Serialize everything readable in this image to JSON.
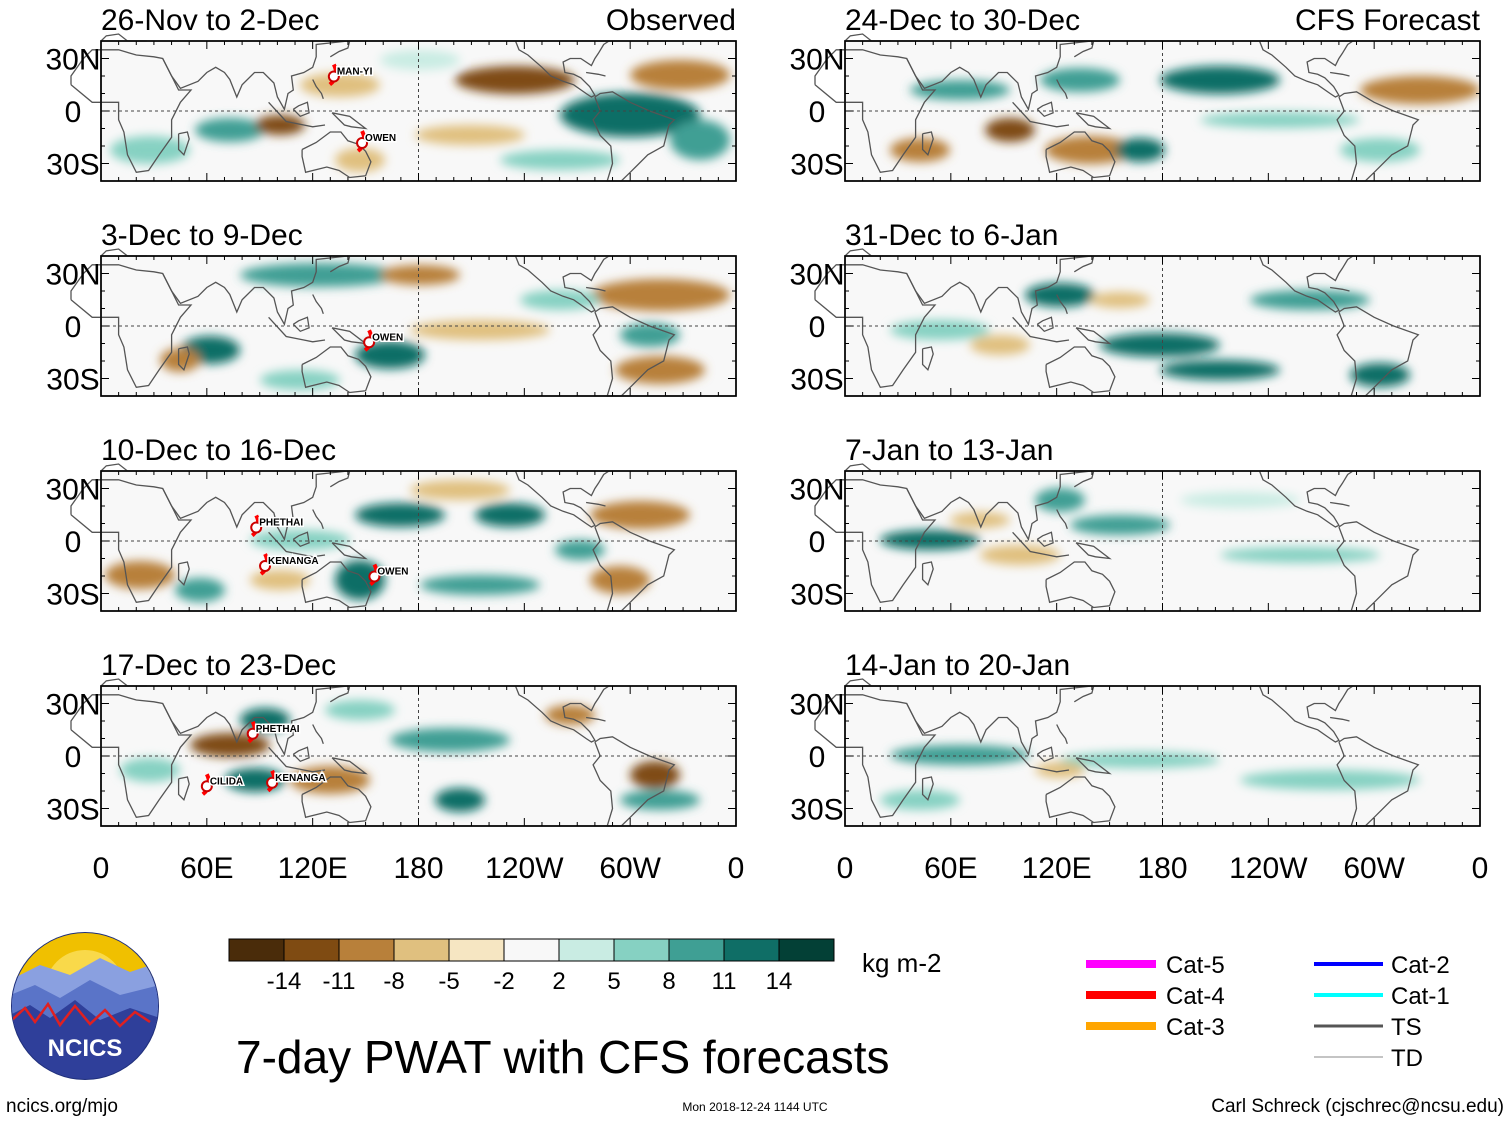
{
  "observed_label": "Observed",
  "forecast_label": "CFS Forecast",
  "observed_panels": [
    {
      "period": "26-Nov to 2-Dec",
      "storms": [
        "MAN-YI",
        "OWEN"
      ]
    },
    {
      "period": "3-Dec to 9-Dec",
      "storms": [
        "OWEN"
      ]
    },
    {
      "period": "10-Dec to 16-Dec",
      "storms": [
        "PHETHAI",
        "KENANGA",
        "OWEN"
      ]
    },
    {
      "period": "17-Dec to 23-Dec",
      "storms": [
        "PHETHAI",
        "CILIDA",
        "KENANGA"
      ]
    }
  ],
  "forecast_panels": [
    {
      "period": "24-Dec to 30-Dec"
    },
    {
      "period": "31-Dec to 6-Jan"
    },
    {
      "period": "7-Jan to 13-Jan"
    },
    {
      "period": "14-Jan to 20-Jan"
    }
  ],
  "lat_labels": [
    "30N",
    "0",
    "30S"
  ],
  "lon_labels": [
    "0",
    "60E",
    "120E",
    "180",
    "120W",
    "60W",
    "0"
  ],
  "colorbar": {
    "colors": [
      "#4a2c0a",
      "#7f4b12",
      "#b8803a",
      "#e0c07f",
      "#f6e6c2",
      "#f8f8f8",
      "#c9ece3",
      "#86d1c2",
      "#3f9f94",
      "#0f6e66",
      "#034036"
    ],
    "tick_labels": [
      "-14",
      "-11",
      "-8",
      "-5",
      "-2",
      "2",
      "5",
      "8",
      "11",
      "14"
    ],
    "units": "kg m-2"
  },
  "legend": {
    "items": [
      {
        "label": "Cat-5",
        "color": "#ff00ff"
      },
      {
        "label": "Cat-4",
        "color": "#ff0000"
      },
      {
        "label": "Cat-3",
        "color": "#ffa500"
      },
      {
        "label": "Cat-2",
        "color": "#0000ff"
      },
      {
        "label": "Cat-1",
        "color": "#00ffff"
      },
      {
        "label": "TS",
        "color": "#555555"
      },
      {
        "label": "TD",
        "color": "#888888"
      }
    ]
  },
  "logo_text": "NCICS",
  "main_title": "7-day PWAT with CFS forecasts",
  "website": "ncics.org/mjo",
  "timestamp": "Mon 2018-12-24 1144 UTC",
  "author": "Carl Schreck (cjschrec@ncsu.edu)"
}
